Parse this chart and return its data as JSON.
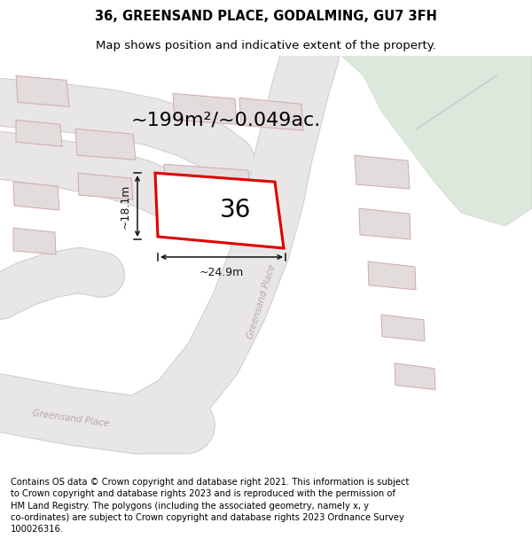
{
  "title": "36, GREENSAND PLACE, GODALMING, GU7 3FH",
  "subtitle": "Map shows position and indicative extent of the property.",
  "footer": "Contains OS data © Crown copyright and database right 2021. This information is subject\nto Crown copyright and database rights 2023 and is reproduced with the permission of\nHM Land Registry. The polygons (including the associated geometry, namely x, y\nco-ordinates) are subject to Crown copyright and database rights 2023 Ordnance Survey\n100026316.",
  "area_text": "~199m²/~0.049ac.",
  "width_label": "~24.9m",
  "height_label": "~18.1m",
  "number_label": "36",
  "map_bg": "#eeecec",
  "building_fill": "#e2dcdc",
  "building_stroke": "#d4a8a8",
  "road_fill": "#e8e6e6",
  "road_stroke": "#d4cccc",
  "highlight_color": "#e00000",
  "green_fill": "#dde8dc",
  "green_stroke": "#c8d8c4",
  "blue_line": "#a8c8cc",
  "road_label_color": "#b8a8a8",
  "dim_color": "#111111",
  "title_fontsize": 10.5,
  "subtitle_fontsize": 9.5,
  "footer_fontsize": 7.2,
  "area_fontsize": 16,
  "dim_fontsize": 9,
  "number_fontsize": 20
}
